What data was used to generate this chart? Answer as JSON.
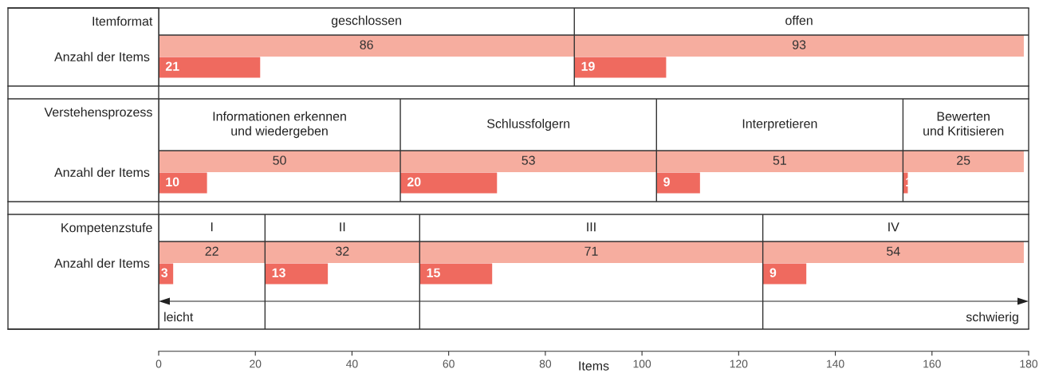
{
  "chart_data": {
    "type": "bar",
    "orientation": "horizontal",
    "xlabel": "Items",
    "categories": [
      "Anzahl der Items",
      "Anzahl der Items",
      "Anzahl der Items"
    ],
    "annotations": [
      "Itemformat",
      "Verstehensprozess",
      "Kompetenzstufe",
      "leicht",
      "schwierig"
    ],
    "series": [
      {
        "name": "geschlossen",
        "color": "#f6ad9f",
        "values": [
          86,
          null,
          null
        ],
        "base": [
          0,
          null,
          null
        ]
      },
      {
        "color": "#ef6a5f",
        "values": [
          21,
          null,
          null
        ],
        "base": [
          0,
          null,
          null
        ]
      },
      {
        "name": "offen",
        "color": "#f6ad9f",
        "values": [
          93,
          null,
          null
        ],
        "base": [
          86,
          null,
          null
        ]
      },
      {
        "color": "#ef6a5f",
        "values": [
          19,
          null,
          null
        ],
        "base": [
          86,
          null,
          null
        ]
      },
      {
        "name": "Informationen erkennen\nund wiedergeben",
        "color": "#f6ad9f",
        "values": [
          null,
          50,
          null
        ],
        "base": [
          null,
          0,
          null
        ]
      },
      {
        "color": "#ef6a5f",
        "values": [
          null,
          10,
          null
        ],
        "base": [
          null,
          0,
          null
        ]
      },
      {
        "name": "Schlussfolgern",
        "color": "#f6ad9f",
        "values": [
          null,
          53,
          null
        ],
        "base": [
          null,
          50,
          null
        ]
      },
      {
        "color": "#ef6a5f",
        "values": [
          null,
          20,
          null
        ],
        "base": [
          null,
          50,
          null
        ]
      },
      {
        "name": "Interpretieren",
        "color": "#f6ad9f",
        "values": [
          null,
          51,
          null
        ],
        "base": [
          null,
          103,
          null
        ]
      },
      {
        "color": "#ef6a5f",
        "values": [
          null,
          9,
          null
        ],
        "base": [
          null,
          103,
          null
        ]
      },
      {
        "name": "Bewerten\nund Kritisieren",
        "color": "#f6ad9f",
        "values": [
          null,
          25,
          null
        ],
        "base": [
          null,
          154,
          null
        ]
      },
      {
        "color": "#ef6a5f",
        "values": [
          null,
          1,
          null
        ],
        "base": [
          null,
          154,
          null
        ]
      },
      {
        "name": "I",
        "color": "#f6ad9f",
        "values": [
          null,
          null,
          22
        ],
        "base": [
          null,
          null,
          0
        ]
      },
      {
        "color": "#ef6a5f",
        "values": [
          null,
          null,
          3
        ],
        "base": [
          null,
          null,
          0
        ]
      },
      {
        "name": "II",
        "color": "#f6ad9f",
        "values": [
          null,
          null,
          32
        ],
        "base": [
          null,
          null,
          22
        ]
      },
      {
        "color": "#ef6a5f",
        "values": [
          null,
          null,
          13
        ],
        "base": [
          null,
          null,
          22
        ]
      },
      {
        "name": "III",
        "color": "#f6ad9f",
        "values": [
          null,
          null,
          71
        ],
        "base": [
          null,
          null,
          54
        ]
      },
      {
        "color": "#ef6a5f",
        "values": [
          null,
          null,
          15
        ],
        "base": [
          null,
          null,
          54
        ]
      },
      {
        "name": "IV",
        "color": "#f6ad9f",
        "values": [
          null,
          null,
          54
        ],
        "base": [
          null,
          null,
          125
        ]
      },
      {
        "color": "#ef6a5f",
        "values": [
          null,
          null,
          9
        ],
        "base": [
          null,
          null,
          125
        ]
      }
    ],
    "data_labels": true,
    "xlim": [
      0,
      180
    ],
    "xticks": [
      0,
      20,
      40,
      60,
      80,
      100,
      120,
      140,
      160,
      180
    ]
  }
}
